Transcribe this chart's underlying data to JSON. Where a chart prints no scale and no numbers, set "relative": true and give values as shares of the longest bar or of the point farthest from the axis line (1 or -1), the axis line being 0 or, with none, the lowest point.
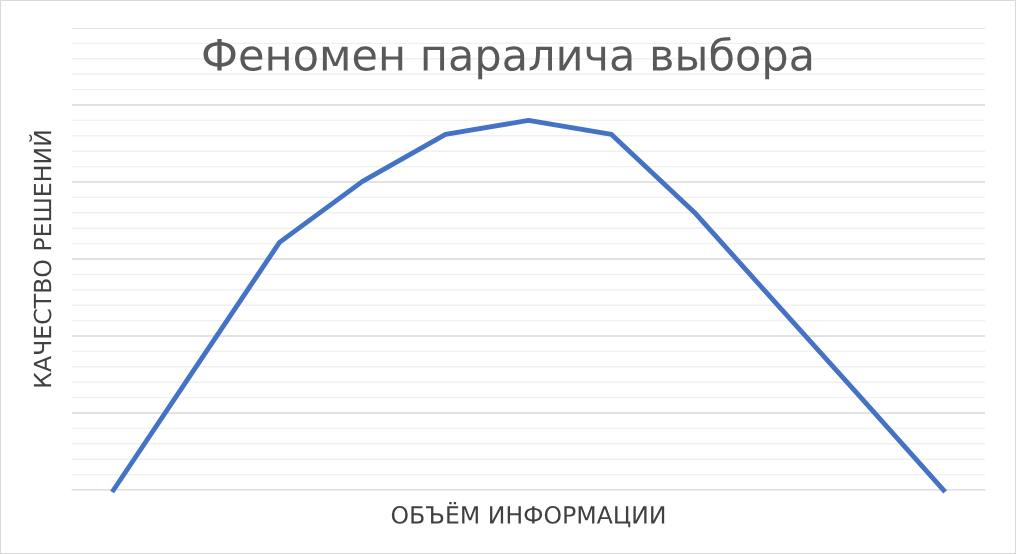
{
  "chart_data": {
    "type": "line",
    "title": "Феномен паралича выбора",
    "xlabel": "ОБЪЁМ ИНФОРМАЦИИ",
    "ylabel": "КАЧЕСТВО РЕШЕНИЙ",
    "categories": [
      null,
      null,
      null,
      null,
      null,
      null,
      null,
      null,
      null,
      null,
      null
    ],
    "series": [
      {
        "color": "#4472c4",
        "values": [
          0,
          0.335,
          0.67,
          0.835,
          0.962,
          1,
          0.962,
          0.751,
          0.501,
          0.251,
          0
        ]
      }
    ],
    "relative": true,
    "grid": "y",
    "marker": "none",
    "line_style": "solid"
  }
}
